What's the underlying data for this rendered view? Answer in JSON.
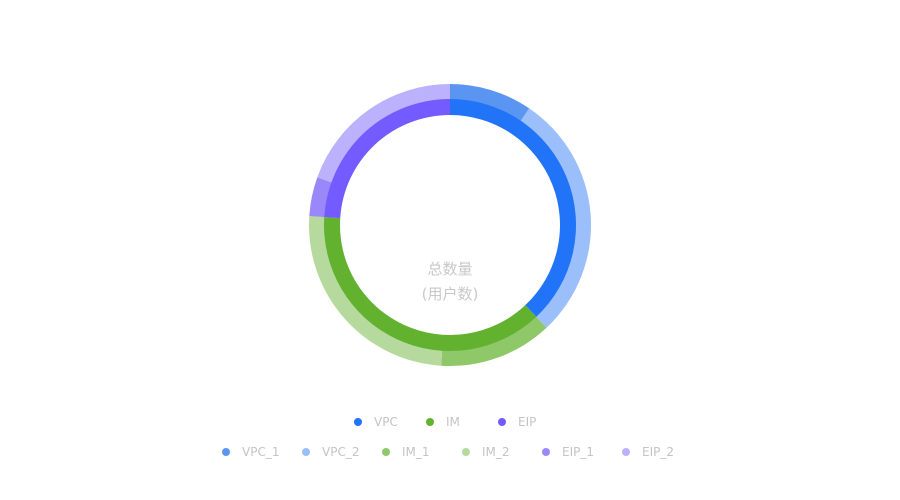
{
  "chart_data": {
    "type": "pie",
    "subtype": "nested-donut",
    "center_label": {
      "line1": "总数量",
      "line2": "(用户数)"
    },
    "inner_ring": {
      "slices": [
        {
          "name": "VPC",
          "value": 38,
          "color": "#2173f7"
        },
        {
          "name": "IM",
          "value": 38,
          "color": "#62b22f"
        },
        {
          "name": "EIP",
          "value": 24,
          "color": "#745bff"
        }
      ]
    },
    "outer_ring": {
      "slices": [
        {
          "name": "VPC_1",
          "value": 9.5,
          "color": "#5b95f2"
        },
        {
          "name": "VPC_2",
          "value": 28.5,
          "color": "#9bbffa"
        },
        {
          "name": "IM_1",
          "value": 13,
          "color": "#8fc869"
        },
        {
          "name": "IM_2",
          "value": 25,
          "color": "#b6da9e"
        },
        {
          "name": "EIP_1",
          "value": 4.5,
          "color": "#9a88fa"
        },
        {
          "name": "EIP_2",
          "value": 19.5,
          "color": "#bbb1fd"
        }
      ]
    },
    "legend_position": "bottom"
  }
}
